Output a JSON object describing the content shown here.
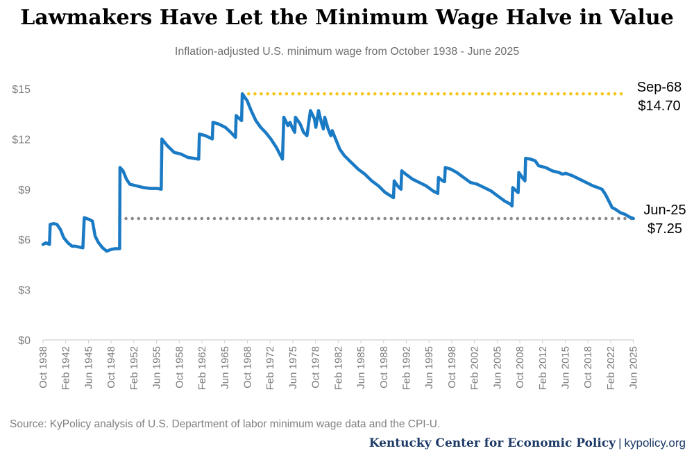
{
  "chart_data": {
    "type": "line",
    "title": "Lawmakers Have Let the Minimum Wage Halve in Value",
    "subtitle": "Inflation-adjusted U.S. minimum wage from October 1938 - June 2025",
    "ylim": [
      0,
      15
    ],
    "yticks": [
      "$0",
      "$3",
      "$6",
      "$9",
      "$12",
      "$15"
    ],
    "ytick_values": [
      0,
      3,
      6,
      9,
      12,
      15
    ],
    "xlim": [
      1938.75,
      2025.45
    ],
    "xticks": [
      {
        "label": "Oct 1938",
        "x": 1938.75
      },
      {
        "label": "Feb 1942",
        "x": 1942.08
      },
      {
        "label": "Jun 1945",
        "x": 1945.42
      },
      {
        "label": "Oct 1948",
        "x": 1948.75
      },
      {
        "label": "Feb 1952",
        "x": 1952.08
      },
      {
        "label": "Jun 1955",
        "x": 1955.42
      },
      {
        "label": "Oct 1958",
        "x": 1958.75
      },
      {
        "label": "Feb 1962",
        "x": 1962.08
      },
      {
        "label": "Jun 1965",
        "x": 1965.42
      },
      {
        "label": "Oct 1968",
        "x": 1968.75
      },
      {
        "label": "Feb 1972",
        "x": 1972.08
      },
      {
        "label": "Jun 1975",
        "x": 1975.42
      },
      {
        "label": "Oct 1978",
        "x": 1978.75
      },
      {
        "label": "Feb 1982",
        "x": 1982.08
      },
      {
        "label": "Jun 1985",
        "x": 1985.42
      },
      {
        "label": "Oct 1988",
        "x": 1988.75
      },
      {
        "label": "Feb 1992",
        "x": 1992.08
      },
      {
        "label": "Jun 1995",
        "x": 1995.42
      },
      {
        "label": "Oct 1998",
        "x": 1998.75
      },
      {
        "label": "Feb 2002",
        "x": 2002.08
      },
      {
        "label": "Jun 2005",
        "x": 2005.42
      },
      {
        "label": "Oct 2008",
        "x": 2008.75
      },
      {
        "label": "Feb 2012",
        "x": 2012.08
      },
      {
        "label": "Jun 2015",
        "x": 2015.42
      },
      {
        "label": "Oct 2018",
        "x": 2018.75
      },
      {
        "label": "Feb 2022",
        "x": 2022.08
      },
      {
        "label": "Jun 2025",
        "x": 2025.42
      }
    ],
    "series": [
      {
        "name": "Inflation-adjusted minimum wage",
        "color": "#1a7ac4",
        "points": [
          [
            1938.75,
            5.7
          ],
          [
            1939.2,
            5.8
          ],
          [
            1939.7,
            5.7
          ],
          [
            1939.8,
            6.9
          ],
          [
            1940.3,
            6.95
          ],
          [
            1940.8,
            6.9
          ],
          [
            1941.3,
            6.6
          ],
          [
            1941.8,
            6.1
          ],
          [
            1942.4,
            5.8
          ],
          [
            1943.0,
            5.6
          ],
          [
            1943.5,
            5.6
          ],
          [
            1944.0,
            5.55
          ],
          [
            1944.6,
            5.5
          ],
          [
            1944.8,
            7.3
          ],
          [
            1945.5,
            7.2
          ],
          [
            1946.0,
            7.1
          ],
          [
            1946.4,
            6.2
          ],
          [
            1946.9,
            5.8
          ],
          [
            1947.5,
            5.5
          ],
          [
            1948.1,
            5.3
          ],
          [
            1948.7,
            5.4
          ],
          [
            1949.3,
            5.45
          ],
          [
            1950.0,
            5.45
          ],
          [
            1950.05,
            10.3
          ],
          [
            1950.5,
            10.1
          ],
          [
            1951.0,
            9.6
          ],
          [
            1951.5,
            9.3
          ],
          [
            1952.5,
            9.2
          ],
          [
            1953.5,
            9.1
          ],
          [
            1954.5,
            9.05
          ],
          [
            1955.5,
            9.05
          ],
          [
            1956.1,
            9.0
          ],
          [
            1956.2,
            12.0
          ],
          [
            1957.0,
            11.6
          ],
          [
            1958.0,
            11.2
          ],
          [
            1959.0,
            11.1
          ],
          [
            1960.0,
            10.9
          ],
          [
            1961.6,
            10.8
          ],
          [
            1961.7,
            12.3
          ],
          [
            1962.6,
            12.2
          ],
          [
            1963.6,
            12.0
          ],
          [
            1963.7,
            13.0
          ],
          [
            1964.5,
            12.9
          ],
          [
            1965.5,
            12.7
          ],
          [
            1966.3,
            12.4
          ],
          [
            1967.0,
            12.1
          ],
          [
            1967.1,
            13.4
          ],
          [
            1967.9,
            13.1
          ],
          [
            1968.0,
            14.7
          ],
          [
            1968.7,
            14.3
          ],
          [
            1969.3,
            13.7
          ],
          [
            1970.0,
            13.1
          ],
          [
            1970.7,
            12.7
          ],
          [
            1971.4,
            12.4
          ],
          [
            1972.2,
            12.0
          ],
          [
            1973.0,
            11.5
          ],
          [
            1973.9,
            10.8
          ],
          [
            1974.1,
            13.3
          ],
          [
            1974.7,
            12.8
          ],
          [
            1975.0,
            13.0
          ],
          [
            1975.3,
            12.7
          ],
          [
            1975.7,
            12.4
          ],
          [
            1975.8,
            13.3
          ],
          [
            1976.5,
            12.9
          ],
          [
            1977.0,
            12.4
          ],
          [
            1977.5,
            12.2
          ],
          [
            1978.0,
            13.7
          ],
          [
            1978.6,
            13.2
          ],
          [
            1978.8,
            12.7
          ],
          [
            1979.2,
            13.7
          ],
          [
            1979.6,
            13.0
          ],
          [
            1979.9,
            12.6
          ],
          [
            1980.1,
            13.3
          ],
          [
            1980.6,
            12.6
          ],
          [
            1981.0,
            12.2
          ],
          [
            1981.2,
            12.5
          ],
          [
            1981.7,
            12.0
          ],
          [
            1982.3,
            11.4
          ],
          [
            1983.0,
            11.0
          ],
          [
            1984.0,
            10.6
          ],
          [
            1985.0,
            10.2
          ],
          [
            1986.0,
            9.9
          ],
          [
            1987.0,
            9.5
          ],
          [
            1988.0,
            9.2
          ],
          [
            1989.0,
            8.8
          ],
          [
            1990.2,
            8.5
          ],
          [
            1990.3,
            9.5
          ],
          [
            1990.8,
            9.2
          ],
          [
            1991.3,
            9.0
          ],
          [
            1991.4,
            10.1
          ],
          [
            1992.0,
            9.9
          ],
          [
            1993.0,
            9.6
          ],
          [
            1994.0,
            9.4
          ],
          [
            1995.0,
            9.2
          ],
          [
            1996.0,
            8.9
          ],
          [
            1996.7,
            8.75
          ],
          [
            1996.8,
            9.7
          ],
          [
            1997.4,
            9.5
          ],
          [
            1997.7,
            9.45
          ],
          [
            1997.8,
            10.3
          ],
          [
            1998.6,
            10.2
          ],
          [
            1999.5,
            10.0
          ],
          [
            2000.5,
            9.7
          ],
          [
            2001.5,
            9.4
          ],
          [
            2002.5,
            9.3
          ],
          [
            2003.5,
            9.1
          ],
          [
            2004.5,
            8.9
          ],
          [
            2005.5,
            8.6
          ],
          [
            2006.5,
            8.3
          ],
          [
            2007.4,
            8.1
          ],
          [
            2007.6,
            8.0
          ],
          [
            2007.7,
            9.1
          ],
          [
            2008.2,
            8.9
          ],
          [
            2008.5,
            8.8
          ],
          [
            2008.6,
            10.0
          ],
          [
            2009.1,
            9.7
          ],
          [
            2009.5,
            9.5
          ],
          [
            2009.6,
            10.85
          ],
          [
            2010.3,
            10.8
          ],
          [
            2011.0,
            10.7
          ],
          [
            2011.5,
            10.4
          ],
          [
            2012.5,
            10.3
          ],
          [
            2013.5,
            10.1
          ],
          [
            2014.5,
            10.0
          ],
          [
            2015.0,
            9.9
          ],
          [
            2015.5,
            9.95
          ],
          [
            2016.5,
            9.8
          ],
          [
            2017.5,
            9.6
          ],
          [
            2018.5,
            9.4
          ],
          [
            2019.5,
            9.2
          ],
          [
            2020.2,
            9.1
          ],
          [
            2020.8,
            9.0
          ],
          [
            2021.3,
            8.7
          ],
          [
            2021.8,
            8.3
          ],
          [
            2022.3,
            7.9
          ],
          [
            2022.8,
            7.8
          ],
          [
            2023.5,
            7.6
          ],
          [
            2024.2,
            7.5
          ],
          [
            2024.8,
            7.35
          ],
          [
            2025.42,
            7.25
          ]
        ]
      }
    ],
    "reference_lines": [
      {
        "name": "Peak (Sep-68)",
        "value": 14.7,
        "x_start": 1968.0,
        "x_end": 2023.9,
        "color": "#f5c518",
        "style": "dotted"
      },
      {
        "name": "Current (Jun-25)",
        "value": 7.25,
        "x_start": 1950.0,
        "x_end": 2025.42,
        "color": "#8a8a8a",
        "style": "dotted"
      }
    ],
    "annotations": [
      {
        "line1": "Sep-68",
        "line2": "$14.70"
      },
      {
        "line1": "Jun-25",
        "line2": "$7.25"
      }
    ]
  },
  "source": "Source: KyPolicy analysis of U.S. Department of labor minimum wage data and the CPI-U.",
  "footer": {
    "organization": "Kentucky Center for Economic Policy",
    "separator": "|",
    "website": "kypolicy.org"
  }
}
